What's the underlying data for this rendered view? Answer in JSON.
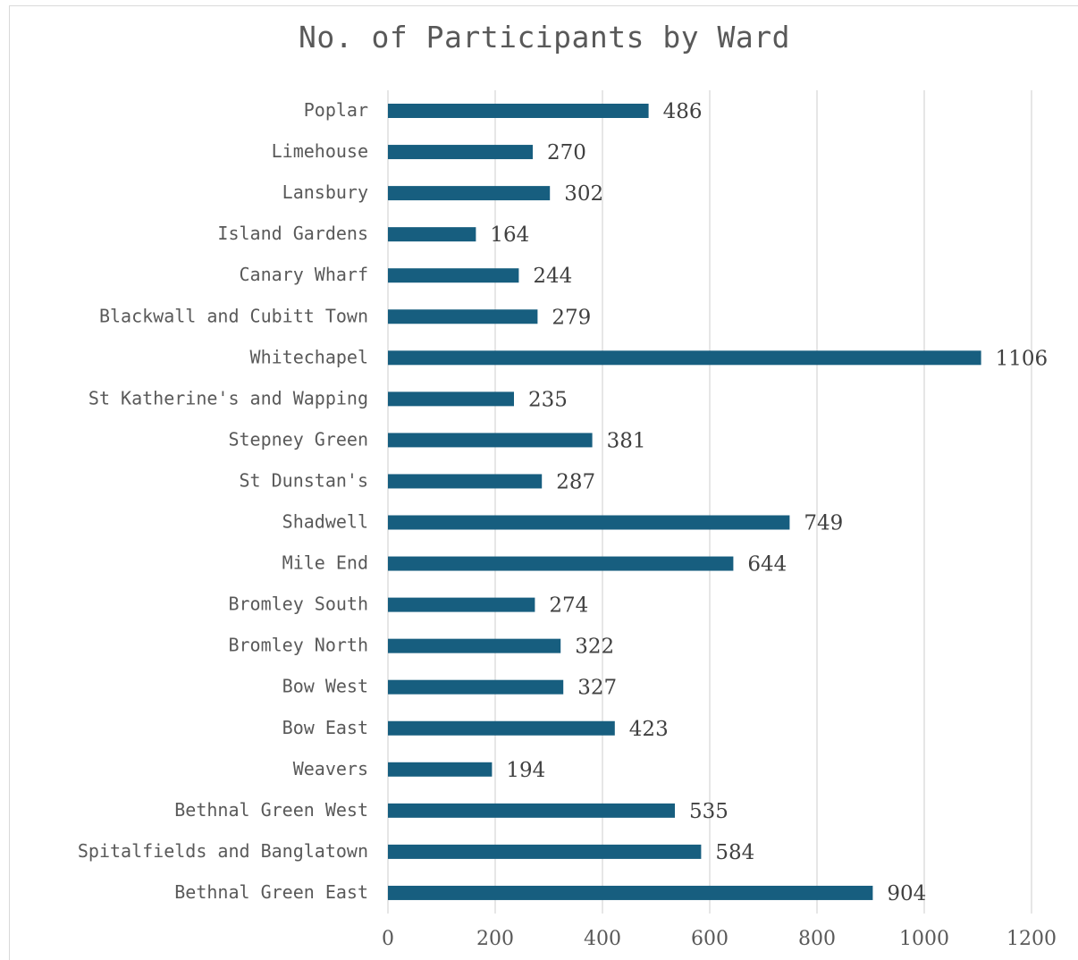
{
  "chart_data": {
    "type": "bar",
    "orientation": "horizontal",
    "title": "No. of Participants by Ward",
    "xlabel": "",
    "ylabel": "",
    "xlim": [
      0,
      1200
    ],
    "x_ticks": [
      0,
      200,
      400,
      600,
      800,
      1000,
      1200
    ],
    "grid": "vertical",
    "legend": "none",
    "bar_color": "#175e7f",
    "categories": [
      "Poplar",
      "Limehouse",
      "Lansbury",
      "Island Gardens",
      "Canary Wharf",
      "Blackwall and Cubitt Town",
      "Whitechapel",
      "St Katherine's and Wapping",
      "Stepney Green",
      "St Dunstan's",
      "Shadwell",
      "Mile End",
      "Bromley South",
      "Bromley North",
      "Bow West",
      "Bow East",
      "Weavers",
      "Bethnal Green West",
      "Spitalfields and Banglatown",
      "Bethnal Green East"
    ],
    "values": [
      486,
      270,
      302,
      164,
      244,
      279,
      1106,
      235,
      381,
      287,
      749,
      644,
      274,
      322,
      327,
      423,
      194,
      535,
      584,
      904
    ]
  }
}
